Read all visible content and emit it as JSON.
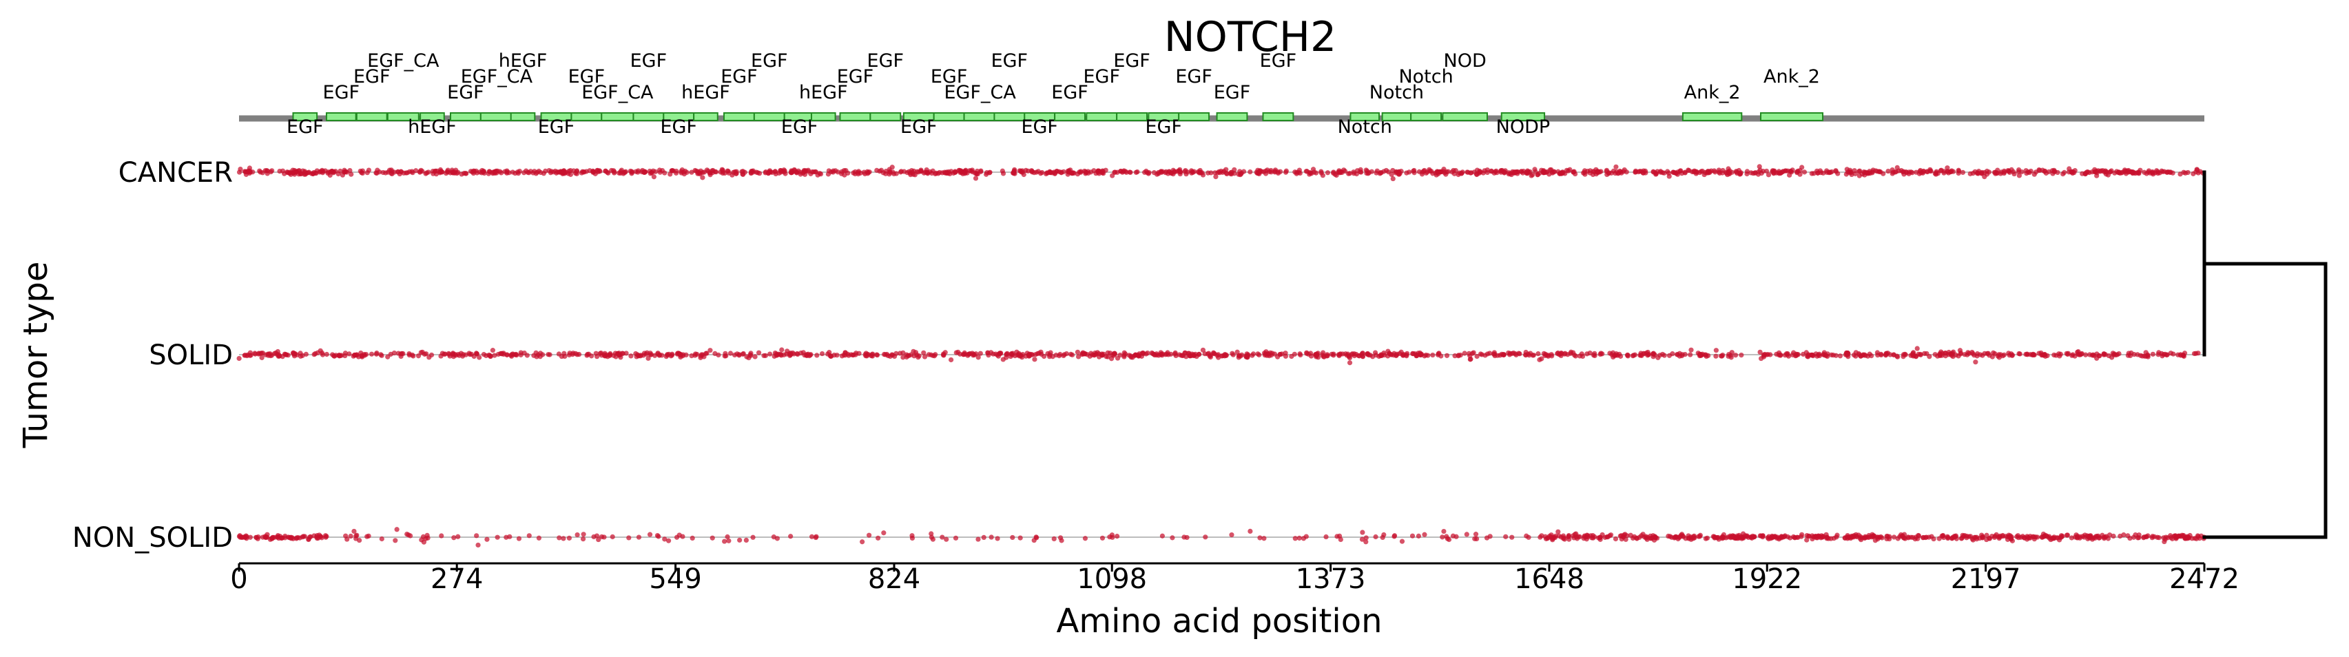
{
  "chart_data": {
    "type": "scatter",
    "title": "NOTCH2",
    "xlabel": "Amino acid position",
    "ylabel": "Tumor type",
    "xlim": [
      0,
      2472
    ],
    "x_ticks": [
      0,
      274,
      549,
      824,
      1098,
      1373,
      1648,
      1922,
      2197,
      2472
    ],
    "categories": [
      "CANCER",
      "SOLID",
      "NON_SOLID"
    ],
    "point_color": "#c8102e",
    "domain_fill": "#90ee90",
    "protein_length": 2472,
    "domains": [
      {
        "name": "EGF",
        "start": 68,
        "end": 98,
        "label_row": 0
      },
      {
        "name": "EGF",
        "start": 110,
        "end": 147,
        "label_row": 2
      },
      {
        "name": "EGF",
        "start": 148,
        "end": 186,
        "label_row": 3
      },
      {
        "name": "EGF_CA",
        "start": 187,
        "end": 226,
        "label_row": 4
      },
      {
        "name": "hEGF",
        "start": 228,
        "end": 258,
        "label_row": 0
      },
      {
        "name": "EGF",
        "start": 266,
        "end": 304,
        "label_row": 2
      },
      {
        "name": "EGF_CA",
        "start": 304,
        "end": 344,
        "label_row": 3
      },
      {
        "name": "hEGF",
        "start": 342,
        "end": 372,
        "label_row": 4
      },
      {
        "name": "EGF",
        "start": 380,
        "end": 418,
        "label_row": 0
      },
      {
        "name": "EGF",
        "start": 418,
        "end": 456,
        "label_row": 3
      },
      {
        "name": "EGF_CA",
        "start": 456,
        "end": 496,
        "label_row": 2
      },
      {
        "name": "EGF",
        "start": 496,
        "end": 534,
        "label_row": 4
      },
      {
        "name": "EGF",
        "start": 534,
        "end": 572,
        "label_row": 0
      },
      {
        "name": "hEGF",
        "start": 572,
        "end": 602,
        "label_row": 2
      },
      {
        "name": "EGF",
        "start": 610,
        "end": 648,
        "label_row": 3
      },
      {
        "name": "EGF",
        "start": 648,
        "end": 686,
        "label_row": 4
      },
      {
        "name": "EGF",
        "start": 686,
        "end": 724,
        "label_row": 0
      },
      {
        "name": "hEGF",
        "start": 720,
        "end": 750,
        "label_row": 2
      },
      {
        "name": "EGF",
        "start": 756,
        "end": 794,
        "label_row": 3
      },
      {
        "name": "EGF",
        "start": 794,
        "end": 832,
        "label_row": 4
      },
      {
        "name": "EGF",
        "start": 836,
        "end": 874,
        "label_row": 0
      },
      {
        "name": "EGF",
        "start": 874,
        "end": 912,
        "label_row": 3
      },
      {
        "name": "EGF_CA",
        "start": 912,
        "end": 952,
        "label_row": 2
      },
      {
        "name": "EGF",
        "start": 950,
        "end": 988,
        "label_row": 4
      },
      {
        "name": "EGF",
        "start": 988,
        "end": 1026,
        "label_row": 0
      },
      {
        "name": "EGF",
        "start": 1026,
        "end": 1064,
        "label_row": 2
      },
      {
        "name": "EGF",
        "start": 1066,
        "end": 1104,
        "label_row": 3
      },
      {
        "name": "EGF",
        "start": 1104,
        "end": 1142,
        "label_row": 4
      },
      {
        "name": "EGF",
        "start": 1144,
        "end": 1182,
        "label_row": 0
      },
      {
        "name": "EGF",
        "start": 1182,
        "end": 1220,
        "label_row": 3
      },
      {
        "name": "EGF",
        "start": 1230,
        "end": 1268,
        "label_row": 2
      },
      {
        "name": "EGF",
        "start": 1288,
        "end": 1326,
        "label_row": 4
      },
      {
        "name": "Notch",
        "start": 1398,
        "end": 1434,
        "label_row": 0
      },
      {
        "name": "Notch",
        "start": 1438,
        "end": 1474,
        "label_row": 2
      },
      {
        "name": "Notch",
        "start": 1474,
        "end": 1512,
        "label_row": 3
      },
      {
        "name": "NOD",
        "start": 1514,
        "end": 1570,
        "label_row": 4
      },
      {
        "name": "NODP",
        "start": 1588,
        "end": 1642,
        "label_row": 0
      },
      {
        "name": "Ank_2",
        "start": 1816,
        "end": 1890,
        "label_row": 2
      },
      {
        "name": "Ank_2",
        "start": 1914,
        "end": 1992,
        "label_row": 3
      }
    ],
    "dendrogram_merge_order": [
      [
        "CANCER",
        "SOLID"
      ],
      [
        "CANCER+SOLID",
        "NON_SOLID"
      ]
    ],
    "mutation_density_by_category": {
      "CANCER": "dense across full length",
      "SOLID": "dense across full length",
      "NON_SOLID": "sparse 60-1650, dense 1780-2472"
    }
  }
}
